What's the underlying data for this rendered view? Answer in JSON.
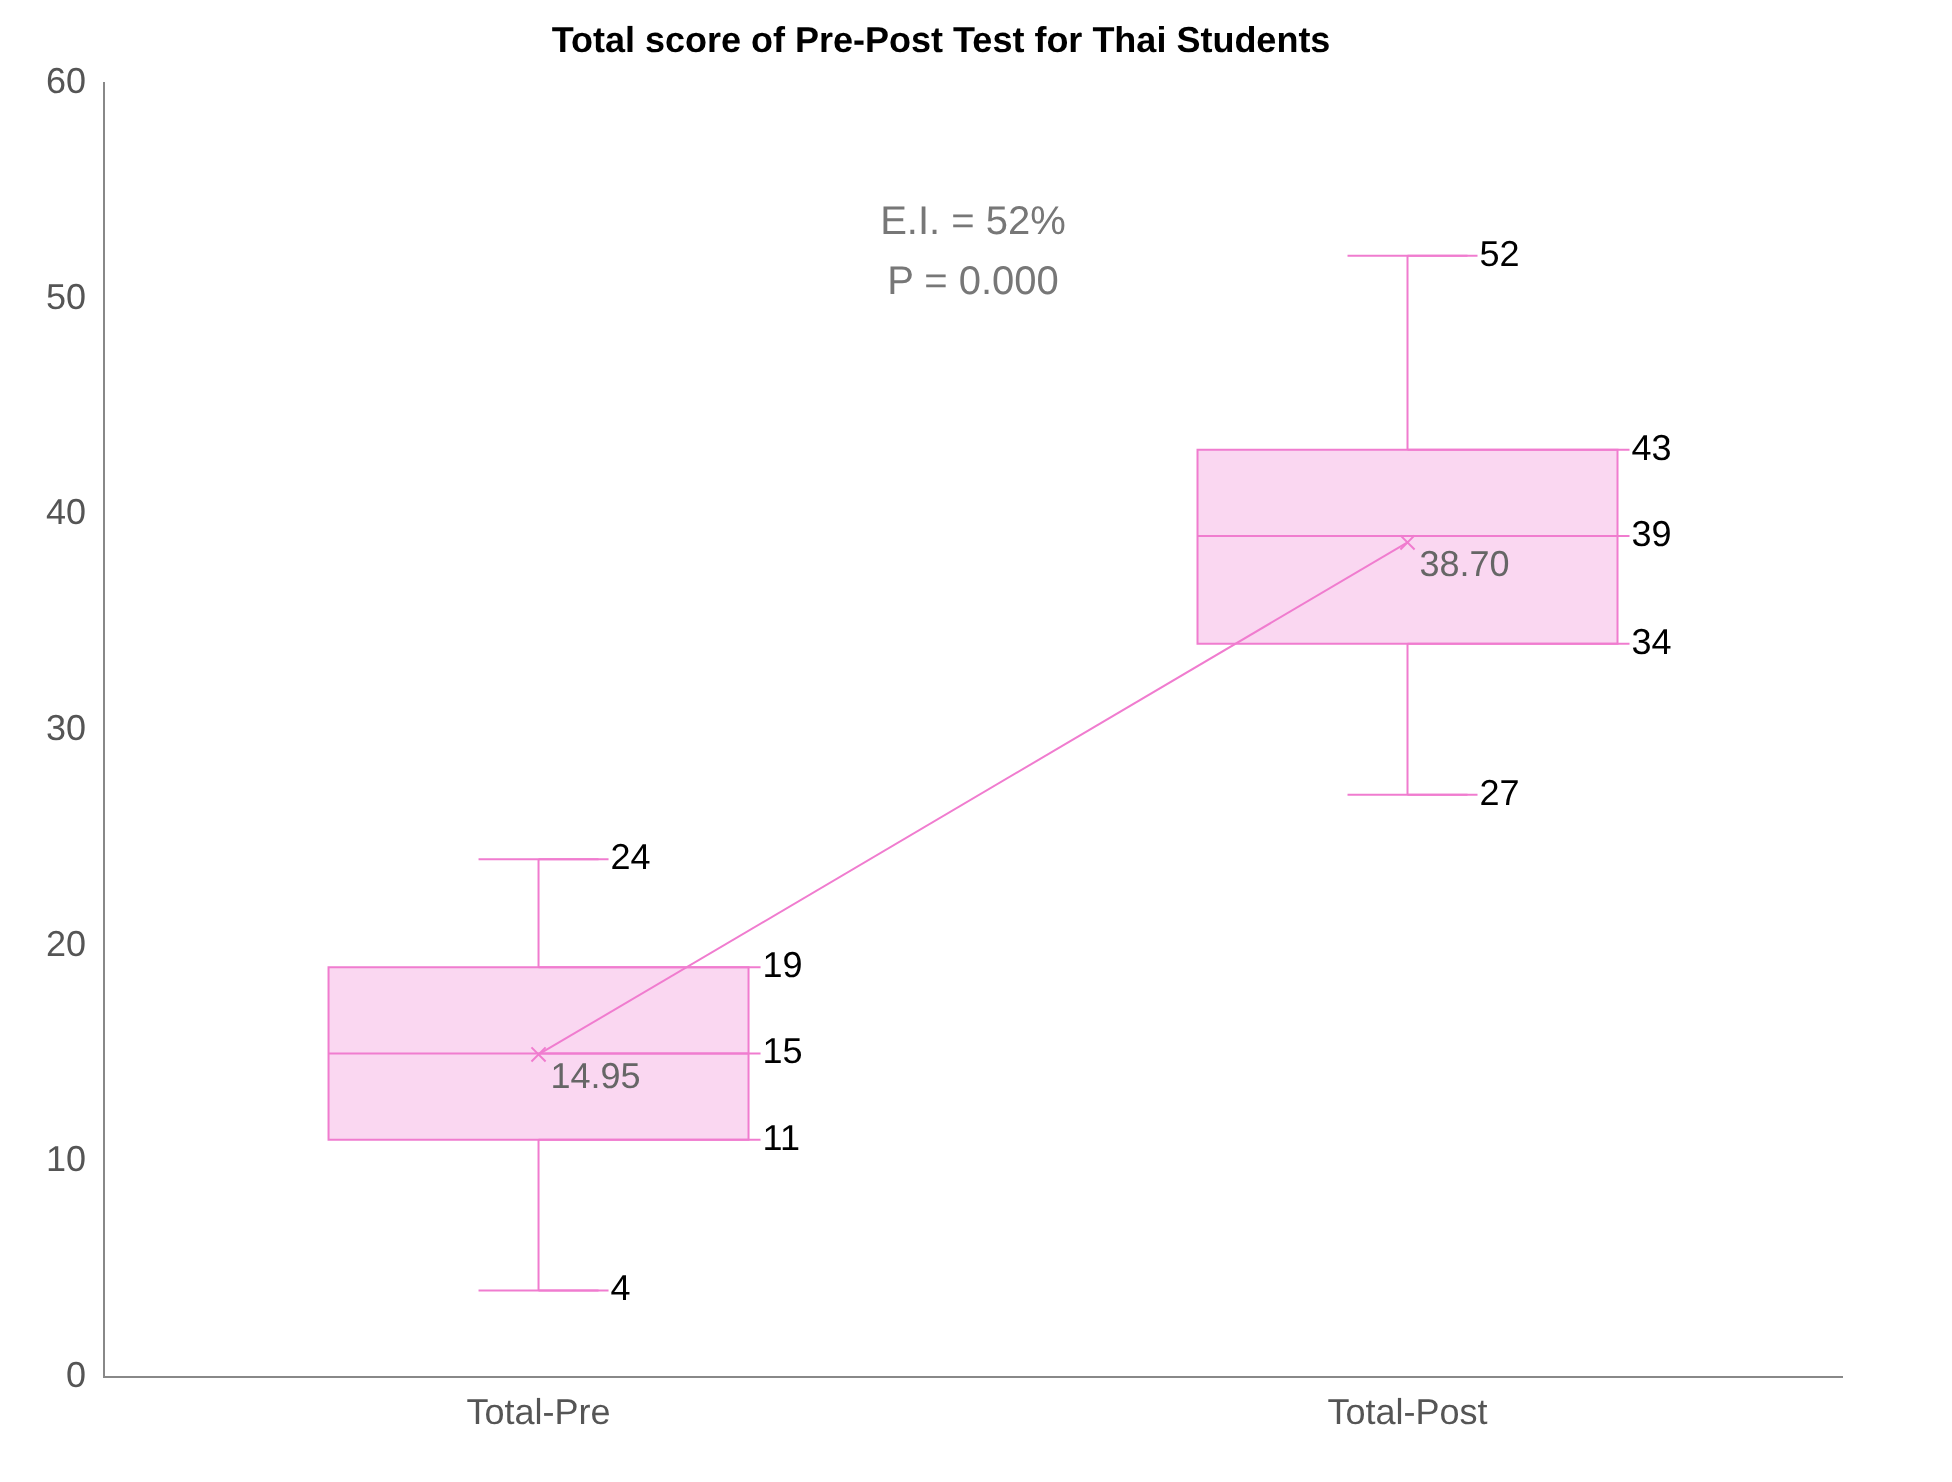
{
  "chart_data": {
    "type": "box",
    "title": "Total score of Pre-Post Test for Thai Students",
    "categories": [
      "Total-Pre",
      "Total-Post"
    ],
    "boxes": [
      {
        "low": 4,
        "q1": 11,
        "median": 15,
        "q3": 19,
        "high": 24
      },
      {
        "low": 27,
        "q1": 34,
        "median": 39,
        "q3": 43,
        "high": 52
      }
    ],
    "color": "#f07ccf",
    "series": [
      {
        "type": "line",
        "color": "#f07ccf",
        "values": [
          14.95,
          38.7
        ],
        "value_labels": [
          "14.95",
          "38.70"
        ],
        "marker": "cross"
      }
    ],
    "ylim": [
      0,
      60
    ],
    "yticks": [
      0,
      10,
      20,
      30,
      40,
      50,
      60
    ],
    "grid": false,
    "legend": false,
    "annotations": [
      "E.I. = 52%",
      "P = 0.000",
      {
        "text": "24",
        "x": "Total-Pre",
        "y": 24
      },
      {
        "text": "19",
        "x": "Total-Pre",
        "y": 19
      },
      {
        "text": "15",
        "x": "Total-Pre",
        "y": 15
      },
      {
        "text": "11",
        "x": "Total-Pre",
        "y": 11
      },
      {
        "text": "4",
        "x": "Total-Pre",
        "y": 4
      },
      {
        "text": "52",
        "x": "Total-Post",
        "y": 52
      },
      {
        "text": "43",
        "x": "Total-Post",
        "y": 43
      },
      {
        "text": "39",
        "x": "Total-Post",
        "y": 39
      },
      {
        "text": "34",
        "x": "Total-Post",
        "y": 34
      },
      {
        "text": "27",
        "x": "Total-Post",
        "y": 27
      }
    ]
  }
}
